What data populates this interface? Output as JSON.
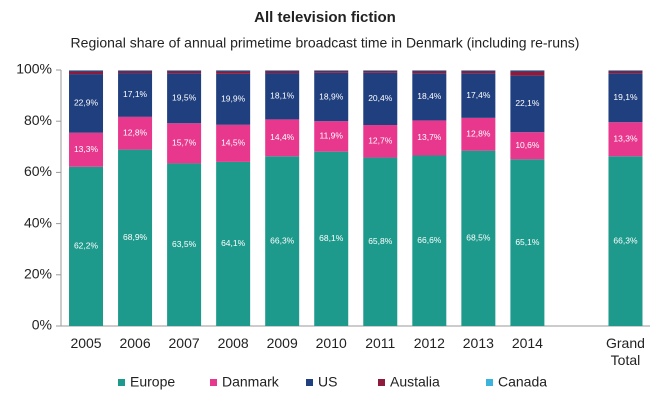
{
  "chart_data": {
    "type": "stacked_bar",
    "title": "All television fiction",
    "subtitle": "Regional share of annual primetime broadcast time in Denmark (including re-runs)",
    "categories": [
      "2005",
      "2006",
      "2007",
      "2008",
      "2009",
      "2010",
      "2011",
      "2012",
      "2013",
      "2014",
      null,
      "Grand Total"
    ],
    "ylim": [
      0,
      100
    ],
    "yticks": [
      {
        "value": 0,
        "label": "0%"
      },
      {
        "value": 20,
        "label": "20%"
      },
      {
        "value": 40,
        "label": "40%"
      },
      {
        "value": 60,
        "label": "60%"
      },
      {
        "value": 80,
        "label": "80%"
      },
      {
        "value": 100,
        "label": "100%"
      }
    ],
    "series": [
      {
        "name": "Europe",
        "color": "#1e9a8c",
        "values": [
          62.2,
          68.9,
          63.5,
          64.1,
          66.3,
          68.1,
          65.8,
          66.6,
          68.5,
          65.1,
          null,
          66.3
        ],
        "value_labels": [
          "62,2%",
          "68,9%",
          "63,5%",
          "64,1%",
          "66,3%",
          "68,1%",
          "65,8%",
          "66,6%",
          "68,5%",
          "65,1%",
          null,
          "66,3%"
        ]
      },
      {
        "name": "Danmark",
        "color": "#e8388e",
        "values": [
          13.3,
          12.8,
          15.7,
          14.5,
          14.4,
          11.9,
          12.7,
          13.7,
          12.8,
          10.6,
          null,
          13.3
        ],
        "value_labels": [
          "13,3%",
          "12,8%",
          "15,7%",
          "14,5%",
          "14,4%",
          "11,9%",
          "12,7%",
          "13,7%",
          "12,8%",
          "10,6%",
          null,
          "13,3%"
        ]
      },
      {
        "name": "US",
        "color": "#1f3f7e",
        "values": [
          22.9,
          17.1,
          19.5,
          19.9,
          18.1,
          18.9,
          20.4,
          18.4,
          17.4,
          22.1,
          null,
          19.1
        ],
        "value_labels": [
          "22,9%",
          "17,1%",
          "19,5%",
          "19,9%",
          "18,1%",
          "18,9%",
          "20,4%",
          "18,4%",
          "17,4%",
          "22,1%",
          null,
          "19,1%"
        ]
      },
      {
        "name": "Austalia",
        "color": "#8e1a3c",
        "values": [
          1.2,
          0.9,
          1.0,
          1.1,
          0.9,
          0.8,
          0.8,
          1.0,
          1.0,
          1.8,
          null,
          1.0
        ]
      },
      {
        "name": "Canada",
        "color": "#3bb3dc",
        "values": [
          0.4,
          0.3,
          0.3,
          0.4,
          0.3,
          0.3,
          0.3,
          0.3,
          0.3,
          0.4,
          null,
          0.3
        ]
      }
    ]
  }
}
